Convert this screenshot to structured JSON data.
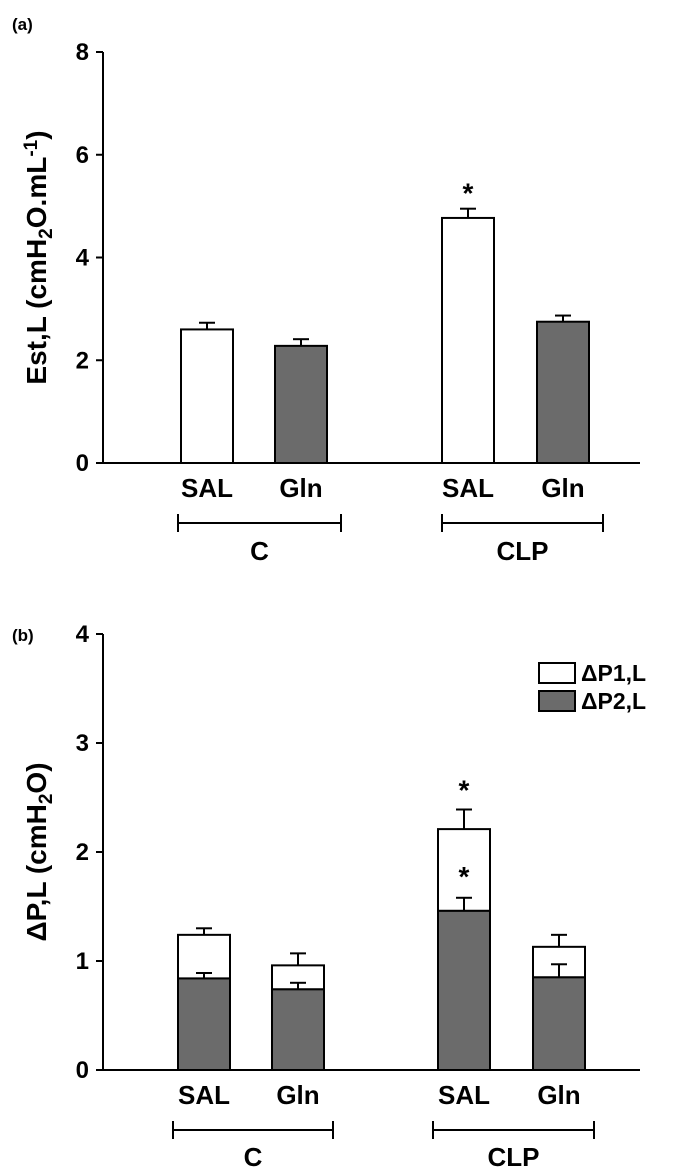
{
  "chart_data": [
    {
      "panel_label": "(a)",
      "type": "bar",
      "ylabel": {
        "main": "Est,L (cmH",
        "sub": "2",
        "mid": "O.mL",
        "sup": "-1",
        "end": ")"
      },
      "ylim": [
        0,
        8
      ],
      "yticks": [
        "0",
        "2",
        "4",
        "6",
        "8"
      ],
      "categories": [
        "SAL",
        "Gln",
        "SAL",
        "Gln"
      ],
      "groups": [
        "C",
        "CLP"
      ],
      "values": [
        2.6,
        2.28,
        4.77,
        2.75
      ],
      "errors": [
        0.13,
        0.13,
        0.18,
        0.12
      ],
      "colors": [
        "#ffffff",
        "#6b6b6b",
        "#ffffff",
        "#6b6b6b"
      ],
      "significance": [
        "",
        "",
        "*",
        ""
      ]
    },
    {
      "panel_label": "(b)",
      "type": "stacked-bar",
      "ylabel": {
        "main": "ΔP,L (cmH",
        "sub": "2",
        "end": "O)"
      },
      "ylim": [
        0,
        4
      ],
      "yticks": [
        "0",
        "1",
        "2",
        "3",
        "4"
      ],
      "categories": [
        "SAL",
        "Gln",
        "SAL",
        "Gln"
      ],
      "groups": [
        "C",
        "CLP"
      ],
      "series": [
        {
          "name": "ΔP2,L",
          "color": "#6b6b6b",
          "values": [
            0.84,
            0.74,
            1.46,
            0.85
          ],
          "errors": [
            0.05,
            0.06,
            0.12,
            0.12
          ],
          "significance": [
            "",
            "",
            "*",
            ""
          ]
        },
        {
          "name": "ΔP1,L",
          "color": "#ffffff",
          "values": [
            0.4,
            0.22,
            0.75,
            0.28
          ],
          "errors": [
            0.06,
            0.11,
            0.18,
            0.11
          ],
          "significance": [
            "",
            "",
            "*",
            ""
          ]
        }
      ],
      "legend_position": "top-right"
    }
  ]
}
